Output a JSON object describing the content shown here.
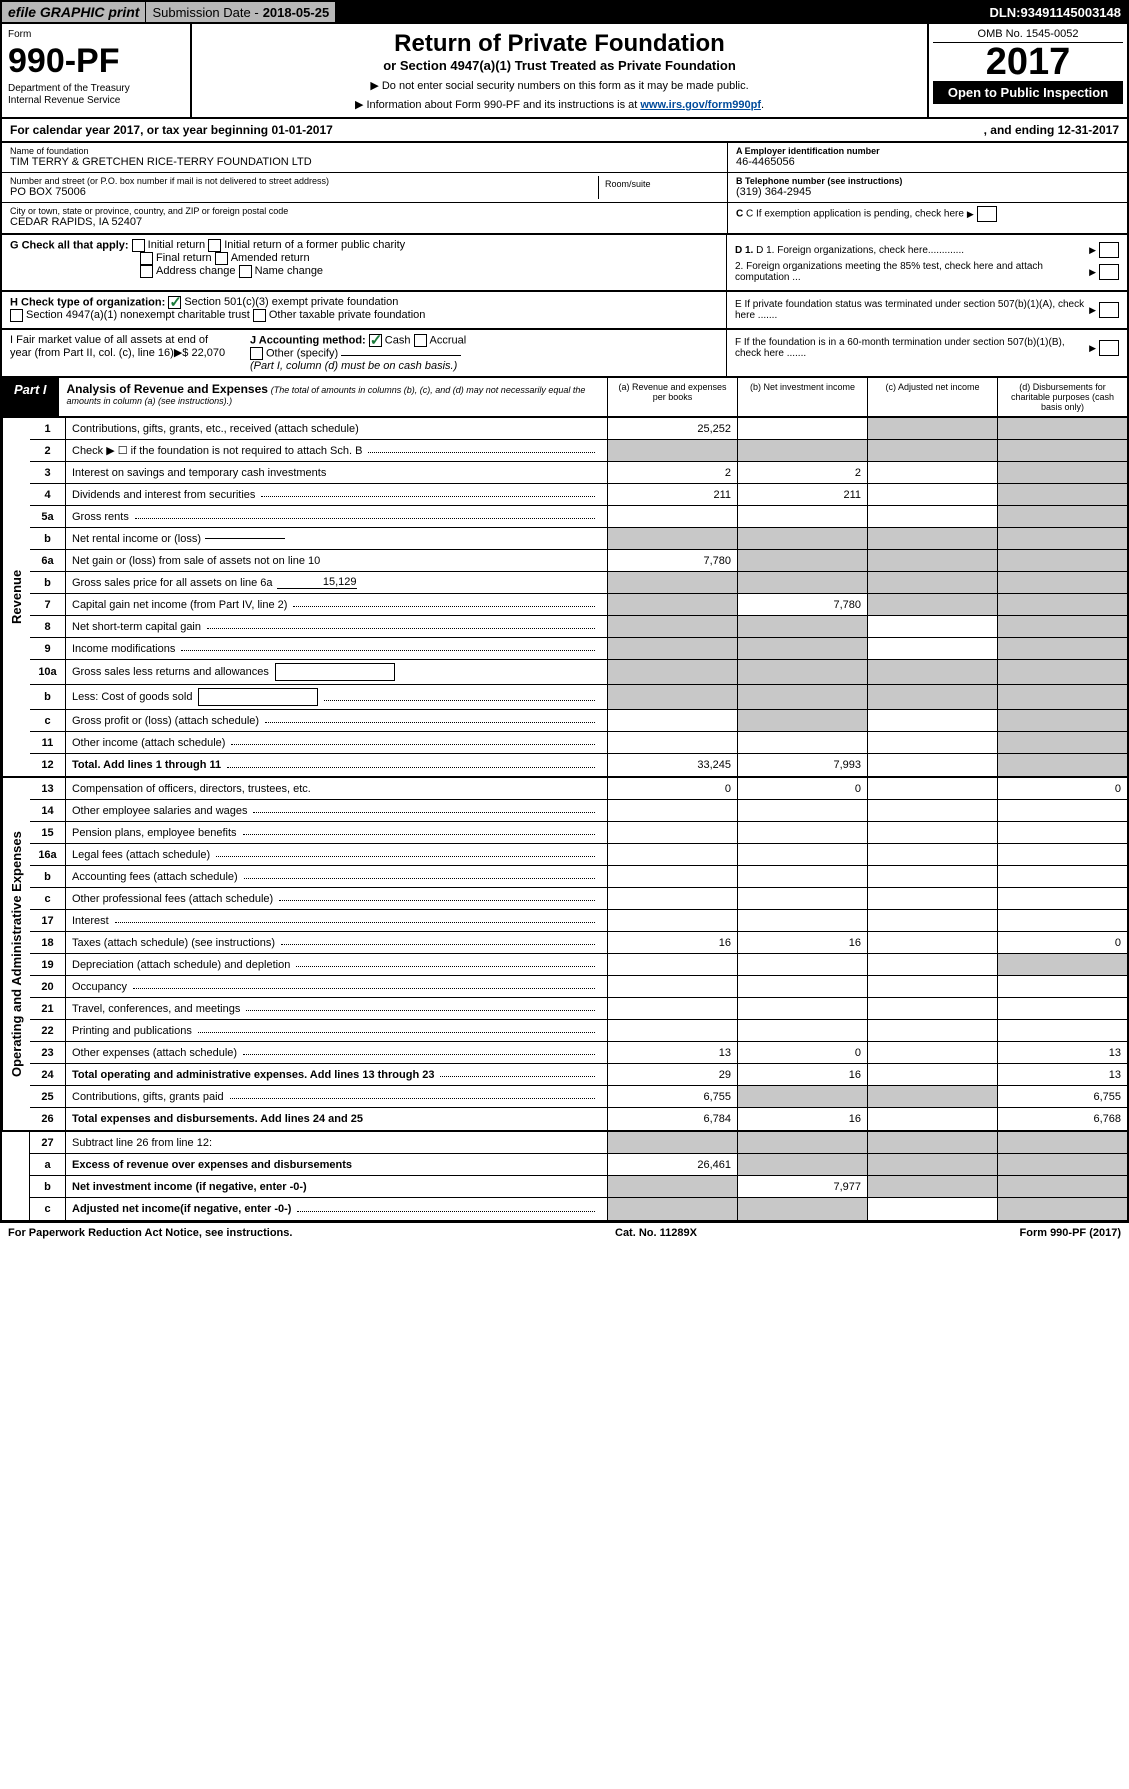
{
  "header": {
    "efile_label": "efile GRAPHIC print",
    "submission_label": "Submission Date - ",
    "submission_date": "2018-05-25",
    "dln_label": "DLN: ",
    "dln": "93491145003148"
  },
  "form_header": {
    "form_label": "Form",
    "form_no": "990-PF",
    "dept": "Department of the Treasury",
    "irs": "Internal Revenue Service",
    "title": "Return of Private Foundation",
    "subtitle": "or Section 4947(a)(1) Trust Treated as Private Foundation",
    "note1": "▶ Do not enter social security numbers on this form as it may be made public.",
    "note2_pre": "▶ Information about Form 990-PF and its instructions is at ",
    "note2_link": "www.irs.gov/form990pf",
    "omb": "OMB No. 1545-0052",
    "year": "2017",
    "open": "Open to Public Inspection"
  },
  "cal_year": {
    "text1": "For calendar year 2017, or tax year beginning 01-01-2017",
    "text2": ", and ending 12-31-2017"
  },
  "info": {
    "name_lbl": "Name of foundation",
    "name": "TIM TERRY & GRETCHEN RICE-TERRY FOUNDATION LTD",
    "addr_lbl": "Number and street (or P.O. box number if mail is not delivered to street address)",
    "addr": "PO BOX 75006",
    "room_lbl": "Room/suite",
    "city_lbl": "City or town, state or province, country, and ZIP or foreign postal code",
    "city": "CEDAR RAPIDS, IA  52407",
    "ein_lbl": "A Employer identification number",
    "ein": "46-4465056",
    "phone_lbl": "B Telephone number (see instructions)",
    "phone": "(319) 364-2945",
    "c_lbl": "C If exemption application is pending, check here"
  },
  "checks": {
    "g_lbl": "G Check all that apply:",
    "g1": "Initial return",
    "g2": "Initial return of a former public charity",
    "g3": "Final return",
    "g4": "Amended return",
    "g5": "Address change",
    "g6": "Name change",
    "h_lbl": "H Check type of organization:",
    "h1": "Section 501(c)(3) exempt private foundation",
    "h2": "Section 4947(a)(1) nonexempt charitable trust",
    "h3": "Other taxable private foundation",
    "i_lbl": "I Fair market value of all assets at end of year (from Part II, col. (c), line 16)▶$  22,070",
    "j_lbl": "J Accounting method:",
    "j1": "Cash",
    "j2": "Accrual",
    "j3": "Other (specify)",
    "j_note": "(Part I, column (d) must be on cash basis.)",
    "d1": "D 1. Foreign organizations, check here.............",
    "d2": "2. Foreign organizations meeting the 85% test, check here and attach computation ...",
    "e": "E  If private foundation status was terminated under section 507(b)(1)(A), check here .......",
    "f": "F  If the foundation is in a 60-month termination under section 507(b)(1)(B), check here ......."
  },
  "part1": {
    "label": "Part I",
    "title": "Analysis of Revenue and Expenses",
    "note": "(The total of amounts in columns (b), (c), and (d) may not necessarily equal the amounts in column (a) (see instructions).)",
    "col_a": "(a)  Revenue and expenses per books",
    "col_b": "(b)  Net investment income",
    "col_c": "(c)  Adjusted net income",
    "col_d": "(d)  Disbursements for charitable purposes (cash basis only)"
  },
  "revenue_label": "Revenue",
  "expenses_label": "Operating and Administrative Expenses",
  "rows": {
    "r1": {
      "n": "1",
      "d": "Contributions, gifts, grants, etc., received (attach schedule)",
      "a": "25,252",
      "shaded": [
        "c",
        "d"
      ]
    },
    "r2": {
      "n": "2",
      "d": "Check ▶ ☐ if the foundation is not required to attach Sch. B",
      "shaded": [
        "a",
        "b",
        "c",
        "d"
      ],
      "dots": true
    },
    "r3": {
      "n": "3",
      "d": "Interest on savings and temporary cash investments",
      "a": "2",
      "b": "2",
      "shaded": [
        "d"
      ]
    },
    "r4": {
      "n": "4",
      "d": "Dividends and interest from securities",
      "a": "211",
      "b": "211",
      "shaded": [
        "d"
      ],
      "dots": true
    },
    "r5a": {
      "n": "5a",
      "d": "Gross rents",
      "shaded": [
        "d"
      ],
      "dots": true
    },
    "r5b": {
      "n": "b",
      "d": "Net rental income or (loss)",
      "underline": true,
      "shaded": [
        "a",
        "b",
        "c",
        "d"
      ]
    },
    "r6a": {
      "n": "6a",
      "d": "Net gain or (loss) from sale of assets not on line 10",
      "a": "7,780",
      "shaded": [
        "b",
        "c",
        "d"
      ]
    },
    "r6b": {
      "n": "b",
      "d": "Gross sales price for all assets on line 6a",
      "uval": "15,129",
      "shaded": [
        "a",
        "b",
        "c",
        "d"
      ]
    },
    "r7": {
      "n": "7",
      "d": "Capital gain net income (from Part IV, line 2)",
      "b": "7,780",
      "shaded": [
        "a",
        "c",
        "d"
      ],
      "dots": true
    },
    "r8": {
      "n": "8",
      "d": "Net short-term capital gain",
      "shaded": [
        "a",
        "b",
        "d"
      ],
      "dots": true
    },
    "r9": {
      "n": "9",
      "d": "Income modifications",
      "shaded": [
        "a",
        "b",
        "d"
      ],
      "dots": true
    },
    "r10a": {
      "n": "10a",
      "d": "Gross sales less returns and allowances",
      "box": true,
      "shaded": [
        "a",
        "b",
        "c",
        "d"
      ]
    },
    "r10b": {
      "n": "b",
      "d": "Less: Cost of goods sold",
      "box": true,
      "shaded": [
        "a",
        "b",
        "c",
        "d"
      ],
      "dots": true
    },
    "r10c": {
      "n": "c",
      "d": "Gross profit or (loss) (attach schedule)",
      "shaded": [
        "b",
        "d"
      ],
      "dots": true
    },
    "r11": {
      "n": "11",
      "d": "Other income (attach schedule)",
      "shaded": [
        "d"
      ],
      "dots": true
    },
    "r12": {
      "n": "12",
      "d": "Total. Add lines 1 through 11",
      "a": "33,245",
      "b": "7,993",
      "shaded": [
        "d"
      ],
      "bold": true,
      "dots": true
    },
    "r13": {
      "n": "13",
      "d": "Compensation of officers, directors, trustees, etc.",
      "a": "0",
      "b": "0",
      "dnum": "0"
    },
    "r14": {
      "n": "14",
      "d": "Other employee salaries and wages",
      "dots": true
    },
    "r15": {
      "n": "15",
      "d": "Pension plans, employee benefits",
      "dots": true
    },
    "r16a": {
      "n": "16a",
      "d": "Legal fees (attach schedule)",
      "dots": true
    },
    "r16b": {
      "n": "b",
      "d": "Accounting fees (attach schedule)",
      "dots": true
    },
    "r16c": {
      "n": "c",
      "d": "Other professional fees (attach schedule)",
      "dots": true
    },
    "r17": {
      "n": "17",
      "d": "Interest",
      "dots": true
    },
    "r18": {
      "n": "18",
      "d": "Taxes (attach schedule) (see instructions)",
      "a": "16",
      "b": "16",
      "dnum": "0",
      "dots": true
    },
    "r19": {
      "n": "19",
      "d": "Depreciation (attach schedule) and depletion",
      "shaded": [
        "d"
      ],
      "dots": true
    },
    "r20": {
      "n": "20",
      "d": "Occupancy",
      "dots": true
    },
    "r21": {
      "n": "21",
      "d": "Travel, conferences, and meetings",
      "dots": true
    },
    "r22": {
      "n": "22",
      "d": "Printing and publications",
      "dots": true
    },
    "r23": {
      "n": "23",
      "d": "Other expenses (attach schedule)",
      "a": "13",
      "b": "0",
      "dnum": "13",
      "dots": true
    },
    "r24": {
      "n": "24",
      "d": "Total operating and administrative expenses. Add lines 13 through 23",
      "a": "29",
      "b": "16",
      "dnum": "13",
      "bold": true,
      "dots": true
    },
    "r25": {
      "n": "25",
      "d": "Contributions, gifts, grants paid",
      "a": "6,755",
      "shaded": [
        "b",
        "c"
      ],
      "dnum": "6,755",
      "dots": true
    },
    "r26": {
      "n": "26",
      "d": "Total expenses and disbursements. Add lines 24 and 25",
      "a": "6,784",
      "b": "16",
      "dnum": "6,768",
      "bold": true
    },
    "r27": {
      "n": "27",
      "d": "Subtract line 26 from line 12:",
      "shaded": [
        "a",
        "b",
        "c",
        "d"
      ]
    },
    "r27a": {
      "n": "a",
      "d": "Excess of revenue over expenses and disbursements",
      "a": "26,461",
      "shaded": [
        "b",
        "c",
        "d"
      ],
      "bold": true
    },
    "r27b": {
      "n": "b",
      "d": "Net investment income (if negative, enter -0-)",
      "b": "7,977",
      "shaded": [
        "a",
        "c",
        "d"
      ],
      "bold": true
    },
    "r27c": {
      "n": "c",
      "d": "Adjusted net income(if negative, enter -0-)",
      "shaded": [
        "a",
        "b",
        "d"
      ],
      "bold": true,
      "dots": true
    }
  },
  "footer": {
    "left": "For Paperwork Reduction Act Notice, see instructions.",
    "center": "Cat. No. 11289X",
    "right": "Form 990-PF (2017)"
  }
}
